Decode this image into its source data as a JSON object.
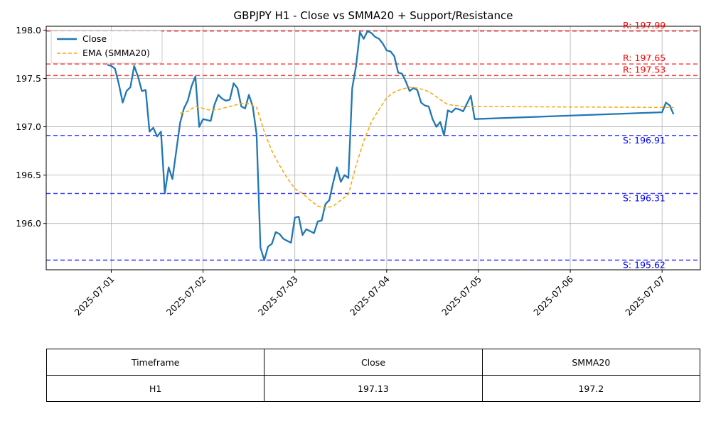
{
  "chart_data": {
    "type": "line",
    "title": "GBPJPY H1 - Close vs SMMA20 + Support/Resistance",
    "xlabel": "",
    "ylabel": "",
    "xlim": [
      "2025-06-30 07:00",
      "2025-07-07 10:00"
    ],
    "ylim": [
      195.52,
      198.04
    ],
    "grid": true,
    "legend_position": "upper-left",
    "x_ticks": [
      "2025-07-01",
      "2025-07-02",
      "2025-07-03",
      "2025-07-04",
      "2025-07-05",
      "2025-07-06",
      "2025-07-07"
    ],
    "y_ticks": [
      196.0,
      196.5,
      197.0,
      197.5,
      198.0
    ],
    "y_tick_labels": [
      "196.0",
      "196.5",
      "197.0",
      "197.5",
      "198.0"
    ],
    "series": [
      {
        "name": "Close",
        "color": "#1f77b4",
        "style": "solid",
        "points": [
          [
            "2025-06-30 23:00",
            197.64
          ],
          [
            "2025-07-01 00:00",
            197.63
          ],
          [
            "2025-07-01 01:00",
            197.6
          ],
          [
            "2025-07-01 02:00",
            197.44
          ],
          [
            "2025-07-01 03:00",
            197.25
          ],
          [
            "2025-07-01 04:00",
            197.37
          ],
          [
            "2025-07-01 05:00",
            197.41
          ],
          [
            "2025-07-01 06:00",
            197.63
          ],
          [
            "2025-07-01 07:00",
            197.52
          ],
          [
            "2025-07-01 08:00",
            197.37
          ],
          [
            "2025-07-01 09:00",
            197.38
          ],
          [
            "2025-07-01 10:00",
            196.95
          ],
          [
            "2025-07-01 11:00",
            196.99
          ],
          [
            "2025-07-01 12:00",
            196.9
          ],
          [
            "2025-07-01 13:00",
            196.95
          ],
          [
            "2025-07-01 14:00",
            196.31
          ],
          [
            "2025-07-01 15:00",
            196.58
          ],
          [
            "2025-07-01 16:00",
            196.46
          ],
          [
            "2025-07-01 17:00",
            196.75
          ],
          [
            "2025-07-01 18:00",
            197.04
          ],
          [
            "2025-07-01 19:00",
            197.19
          ],
          [
            "2025-07-01 20:00",
            197.27
          ],
          [
            "2025-07-01 21:00",
            197.42
          ],
          [
            "2025-07-01 22:00",
            197.52
          ],
          [
            "2025-07-01 23:00",
            197.0
          ],
          [
            "2025-07-02 00:00",
            197.08
          ],
          [
            "2025-07-02 01:00",
            197.07
          ],
          [
            "2025-07-02 02:00",
            197.06
          ],
          [
            "2025-07-02 03:00",
            197.23
          ],
          [
            "2025-07-02 04:00",
            197.33
          ],
          [
            "2025-07-02 05:00",
            197.29
          ],
          [
            "2025-07-02 06:00",
            197.27
          ],
          [
            "2025-07-02 07:00",
            197.28
          ],
          [
            "2025-07-02 08:00",
            197.45
          ],
          [
            "2025-07-02 09:00",
            197.4
          ],
          [
            "2025-07-02 10:00",
            197.21
          ],
          [
            "2025-07-02 11:00",
            197.19
          ],
          [
            "2025-07-02 12:00",
            197.33
          ],
          [
            "2025-07-02 13:00",
            197.21
          ],
          [
            "2025-07-02 14:00",
            196.92
          ],
          [
            "2025-07-02 15:00",
            195.75
          ],
          [
            "2025-07-02 16:00",
            195.62
          ],
          [
            "2025-07-02 17:00",
            195.76
          ],
          [
            "2025-07-02 18:00",
            195.79
          ],
          [
            "2025-07-02 19:00",
            195.91
          ],
          [
            "2025-07-02 20:00",
            195.89
          ],
          [
            "2025-07-02 21:00",
            195.84
          ],
          [
            "2025-07-02 22:00",
            195.82
          ],
          [
            "2025-07-02 23:00",
            195.8
          ],
          [
            "2025-07-03 00:00",
            196.06
          ],
          [
            "2025-07-03 01:00",
            196.07
          ],
          [
            "2025-07-03 02:00",
            195.88
          ],
          [
            "2025-07-03 03:00",
            195.94
          ],
          [
            "2025-07-03 04:00",
            195.92
          ],
          [
            "2025-07-03 05:00",
            195.9
          ],
          [
            "2025-07-03 06:00",
            196.02
          ],
          [
            "2025-07-03 07:00",
            196.03
          ],
          [
            "2025-07-03 08:00",
            196.2
          ],
          [
            "2025-07-03 09:00",
            196.24
          ],
          [
            "2025-07-03 10:00",
            196.42
          ],
          [
            "2025-07-03 11:00",
            196.58
          ],
          [
            "2025-07-03 12:00",
            196.43
          ],
          [
            "2025-07-03 13:00",
            196.5
          ],
          [
            "2025-07-03 14:00",
            196.47
          ],
          [
            "2025-07-03 15:00",
            197.4
          ],
          [
            "2025-07-03 16:00",
            197.63
          ],
          [
            "2025-07-03 17:00",
            197.98
          ],
          [
            "2025-07-03 18:00",
            197.91
          ],
          [
            "2025-07-03 19:00",
            197.99
          ],
          [
            "2025-07-03 20:00",
            197.97
          ],
          [
            "2025-07-03 21:00",
            197.93
          ],
          [
            "2025-07-03 22:00",
            197.91
          ],
          [
            "2025-07-03 23:00",
            197.86
          ],
          [
            "2025-07-04 00:00",
            197.79
          ],
          [
            "2025-07-04 01:00",
            197.78
          ],
          [
            "2025-07-04 02:00",
            197.73
          ],
          [
            "2025-07-04 03:00",
            197.56
          ],
          [
            "2025-07-04 04:00",
            197.55
          ],
          [
            "2025-07-04 05:00",
            197.47
          ],
          [
            "2025-07-04 06:00",
            197.37
          ],
          [
            "2025-07-04 07:00",
            197.4
          ],
          [
            "2025-07-04 08:00",
            197.38
          ],
          [
            "2025-07-04 09:00",
            197.25
          ],
          [
            "2025-07-04 10:00",
            197.22
          ],
          [
            "2025-07-04 11:00",
            197.21
          ],
          [
            "2025-07-04 12:00",
            197.08
          ],
          [
            "2025-07-04 13:00",
            197.0
          ],
          [
            "2025-07-04 14:00",
            197.05
          ],
          [
            "2025-07-04 15:00",
            196.91
          ],
          [
            "2025-07-04 16:00",
            197.17
          ],
          [
            "2025-07-04 17:00",
            197.15
          ],
          [
            "2025-07-04 18:00",
            197.19
          ],
          [
            "2025-07-04 19:00",
            197.18
          ],
          [
            "2025-07-04 20:00",
            197.16
          ],
          [
            "2025-07-04 21:00",
            197.24
          ],
          [
            "2025-07-04 22:00",
            197.32
          ],
          [
            "2025-07-04 23:00",
            197.08
          ],
          [
            "2025-07-07 00:00",
            197.15
          ],
          [
            "2025-07-07 01:00",
            197.25
          ],
          [
            "2025-07-07 02:00",
            197.22
          ],
          [
            "2025-07-07 03:00",
            197.13
          ]
        ]
      },
      {
        "name": "EMA (SMMA20)",
        "color": "#ffa500",
        "style": "dashed",
        "points": [
          [
            "2025-07-01 18:00",
            197.14
          ],
          [
            "2025-07-01 20:00",
            197.16
          ],
          [
            "2025-07-01 22:00",
            197.21
          ],
          [
            "2025-07-02 00:00",
            197.19
          ],
          [
            "2025-07-02 02:00",
            197.17
          ],
          [
            "2025-07-02 04:00",
            197.18
          ],
          [
            "2025-07-02 06:00",
            197.2
          ],
          [
            "2025-07-02 08:00",
            197.22
          ],
          [
            "2025-07-02 10:00",
            197.24
          ],
          [
            "2025-07-02 12:00",
            197.24
          ],
          [
            "2025-07-02 14:00",
            197.2
          ],
          [
            "2025-07-02 16:00",
            196.95
          ],
          [
            "2025-07-02 18:00",
            196.75
          ],
          [
            "2025-07-02 20:00",
            196.6
          ],
          [
            "2025-07-02 22:00",
            196.47
          ],
          [
            "2025-07-03 00:00",
            196.36
          ],
          [
            "2025-07-03 02:00",
            196.31
          ],
          [
            "2025-07-03 04:00",
            196.24
          ],
          [
            "2025-07-03 06:00",
            196.18
          ],
          [
            "2025-07-03 08:00",
            196.16
          ],
          [
            "2025-07-03 10:00",
            196.18
          ],
          [
            "2025-07-03 12:00",
            196.24
          ],
          [
            "2025-07-03 14:00",
            196.3
          ],
          [
            "2025-07-03 16:00",
            196.6
          ],
          [
            "2025-07-03 18:00",
            196.85
          ],
          [
            "2025-07-03 20:00",
            197.05
          ],
          [
            "2025-07-03 22:00",
            197.18
          ],
          [
            "2025-07-04 00:00",
            197.3
          ],
          [
            "2025-07-04 02:00",
            197.36
          ],
          [
            "2025-07-04 04:00",
            197.39
          ],
          [
            "2025-07-04 06:00",
            197.41
          ],
          [
            "2025-07-04 08:00",
            197.4
          ],
          [
            "2025-07-04 10:00",
            197.38
          ],
          [
            "2025-07-04 12:00",
            197.34
          ],
          [
            "2025-07-04 14:00",
            197.28
          ],
          [
            "2025-07-04 16:00",
            197.23
          ],
          [
            "2025-07-04 18:00",
            197.22
          ],
          [
            "2025-07-04 20:00",
            197.21
          ],
          [
            "2025-07-04 22:00",
            197.21
          ],
          [
            "2025-07-04 23:00",
            197.21
          ],
          [
            "2025-07-07 00:00",
            197.2
          ],
          [
            "2025-07-07 03:00",
            197.2
          ]
        ]
      }
    ],
    "resistance": [
      {
        "value": 197.99,
        "label": "R: 197.99"
      },
      {
        "value": 197.65,
        "label": "R: 197.65"
      },
      {
        "value": 197.53,
        "label": "R: 197.53"
      }
    ],
    "support": [
      {
        "value": 196.91,
        "label": "S: 196.91"
      },
      {
        "value": 196.31,
        "label": "S: 196.31"
      },
      {
        "value": 195.62,
        "label": "S: 195.62"
      }
    ],
    "colors": {
      "resistance": "#ff0000",
      "support": "#0000ff",
      "grid": "#b0b0b0",
      "legend_border": "#cccccc"
    }
  },
  "table": {
    "headers": [
      "Timeframe",
      "Close",
      "SMMA20"
    ],
    "row": [
      "H1",
      "197.13",
      "197.2"
    ]
  }
}
